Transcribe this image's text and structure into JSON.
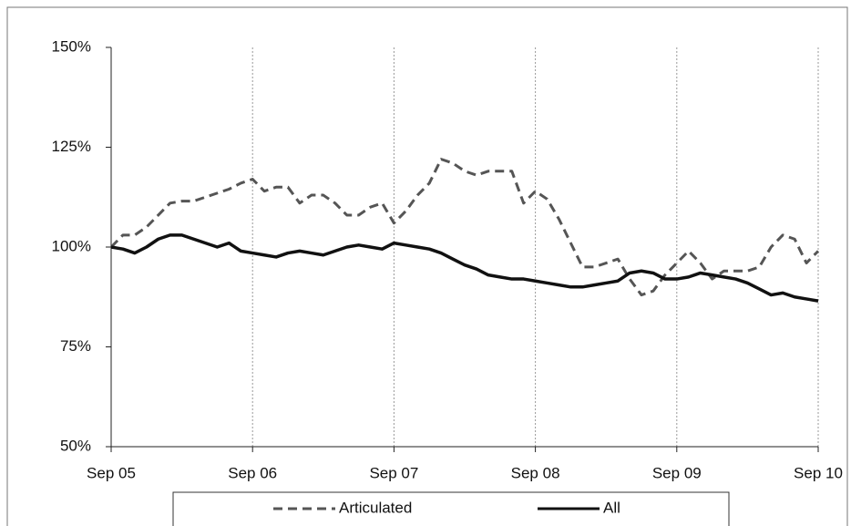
{
  "chart_data": {
    "type": "line",
    "categories": [
      "Sep 05",
      null,
      null,
      null,
      null,
      null,
      null,
      null,
      null,
      null,
      null,
      null,
      "Sep 06",
      null,
      null,
      null,
      null,
      null,
      null,
      null,
      null,
      null,
      null,
      null,
      "Sep 07",
      null,
      null,
      null,
      null,
      null,
      null,
      null,
      null,
      null,
      null,
      null,
      "Sep 08",
      null,
      null,
      null,
      null,
      null,
      null,
      null,
      null,
      null,
      null,
      null,
      "Sep 09",
      null,
      null,
      null,
      null,
      null,
      null,
      null,
      null,
      null,
      null,
      null,
      "Sep 10"
    ],
    "series": [
      {
        "name": "Articulated",
        "color": "#555555",
        "dashed": true,
        "values": [
          100,
          103,
          103,
          105,
          108,
          111,
          111.5,
          111.5,
          112.5,
          113.5,
          114.5,
          116,
          117,
          114,
          115,
          115,
          111,
          113,
          113,
          111,
          108,
          108,
          110,
          111,
          106,
          109,
          113,
          116,
          122,
          121,
          119,
          118,
          119,
          119,
          119,
          111,
          114,
          112,
          107,
          101,
          95,
          95,
          96,
          97,
          92,
          88,
          89,
          93,
          96,
          99,
          96,
          92,
          94,
          94,
          94,
          95,
          100,
          103,
          102,
          96,
          99
        ]
      },
      {
        "name": "All",
        "color": "#111111",
        "dashed": false,
        "values": [
          100,
          99.5,
          98.5,
          100,
          102,
          103,
          103,
          102,
          101,
          100,
          101,
          99,
          98.5,
          98,
          97.5,
          98.5,
          99,
          98.5,
          98,
          99,
          100,
          100.5,
          100,
          99.5,
          101,
          100.5,
          100,
          99.5,
          98.5,
          97,
          95.5,
          94.5,
          93,
          92.5,
          92,
          92,
          91.5,
          91,
          90.5,
          90,
          90,
          90.5,
          91,
          91.5,
          93.5,
          94,
          93.5,
          92,
          92,
          92.5,
          93.5,
          93,
          92.5,
          92,
          91,
          89.5,
          88,
          88.5,
          87.5,
          87,
          86.5
        ]
      }
    ],
    "ylim": [
      50,
      150
    ],
    "yticks": [
      {
        "value": 50,
        "label": "50%"
      },
      {
        "value": 75,
        "label": "75%"
      },
      {
        "value": 100,
        "label": "100%"
      },
      {
        "value": 125,
        "label": "125%"
      },
      {
        "value": 150,
        "label": "150%"
      }
    ],
    "grid": true
  }
}
